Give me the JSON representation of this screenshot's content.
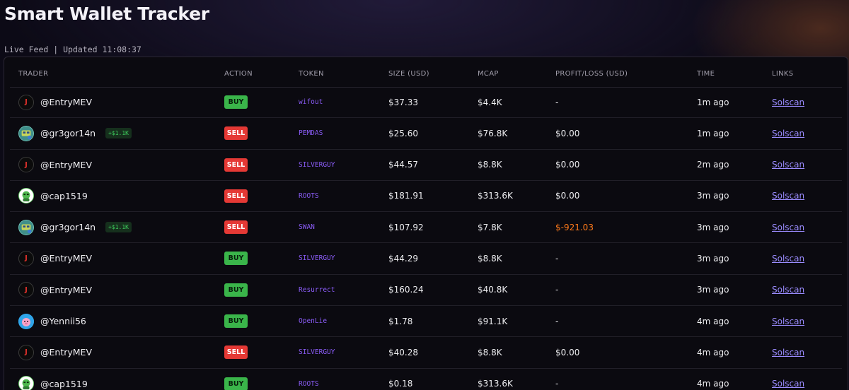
{
  "page": {
    "title": "Smart Wallet Tracker",
    "status": "Live Feed | Updated 11:08:37"
  },
  "table": {
    "headers": [
      "TRADER",
      "ACTION",
      "TOKEN",
      "SIZE (USD)",
      "MCAP",
      "PROFIT/LOSS (USD)",
      "TIME",
      "LINKS"
    ],
    "rows": [
      {
        "trader": "@EntryMEV",
        "avatar": "entry",
        "badge": "",
        "action": "BUY",
        "token": "wifout",
        "size": "$37.33",
        "mcap": "$4.4K",
        "pnl": "-",
        "time": "1m ago",
        "link": "Solscan"
      },
      {
        "trader": "@gr3gor14n",
        "avatar": "gr3",
        "badge": "+$1.1K",
        "action": "SELL",
        "token": "PEMDAS",
        "size": "$25.60",
        "mcap": "$76.8K",
        "pnl": "$0.00",
        "time": "1m ago",
        "link": "Solscan"
      },
      {
        "trader": "@EntryMEV",
        "avatar": "entry",
        "badge": "",
        "action": "SELL",
        "token": "SILVERGUY",
        "size": "$44.57",
        "mcap": "$8.8K",
        "pnl": "$0.00",
        "time": "2m ago",
        "link": "Solscan"
      },
      {
        "trader": "@cap1519",
        "avatar": "cap",
        "badge": "",
        "action": "SELL",
        "token": "ROOTS",
        "size": "$181.91",
        "mcap": "$313.6K",
        "pnl": "$0.00",
        "time": "3m ago",
        "link": "Solscan"
      },
      {
        "trader": "@gr3gor14n",
        "avatar": "gr3",
        "badge": "+$1.1K",
        "action": "SELL",
        "token": "SWAN",
        "size": "$107.92",
        "mcap": "$7.8K",
        "pnl": "$-921.03",
        "time": "3m ago",
        "link": "Solscan"
      },
      {
        "trader": "@EntryMEV",
        "avatar": "entry",
        "badge": "",
        "action": "BUY",
        "token": "SILVERGUY",
        "size": "$44.29",
        "mcap": "$8.8K",
        "pnl": "-",
        "time": "3m ago",
        "link": "Solscan"
      },
      {
        "trader": "@EntryMEV",
        "avatar": "entry",
        "badge": "",
        "action": "BUY",
        "token": "Resurrect",
        "size": "$160.24",
        "mcap": "$40.8K",
        "pnl": "-",
        "time": "3m ago",
        "link": "Solscan"
      },
      {
        "trader": "@Yennii56",
        "avatar": "yen",
        "badge": "",
        "action": "BUY",
        "token": "OpenLie",
        "size": "$1.78",
        "mcap": "$91.1K",
        "pnl": "-",
        "time": "4m ago",
        "link": "Solscan"
      },
      {
        "trader": "@EntryMEV",
        "avatar": "entry",
        "badge": "",
        "action": "SELL",
        "token": "SILVERGUY",
        "size": "$40.28",
        "mcap": "$8.8K",
        "pnl": "$0.00",
        "time": "4m ago",
        "link": "Solscan"
      },
      {
        "trader": "@cap1519",
        "avatar": "cap",
        "badge": "",
        "action": "BUY",
        "token": "ROOTS",
        "size": "$0.18",
        "mcap": "$313.6K",
        "pnl": "-",
        "time": "4m ago",
        "link": "Solscan"
      }
    ]
  },
  "colors": {
    "buy": "#3ab54a",
    "sell": "#e53935",
    "token": "#8a5cf6",
    "loss": "#ff7a1a",
    "link": "#9b8cff"
  }
}
